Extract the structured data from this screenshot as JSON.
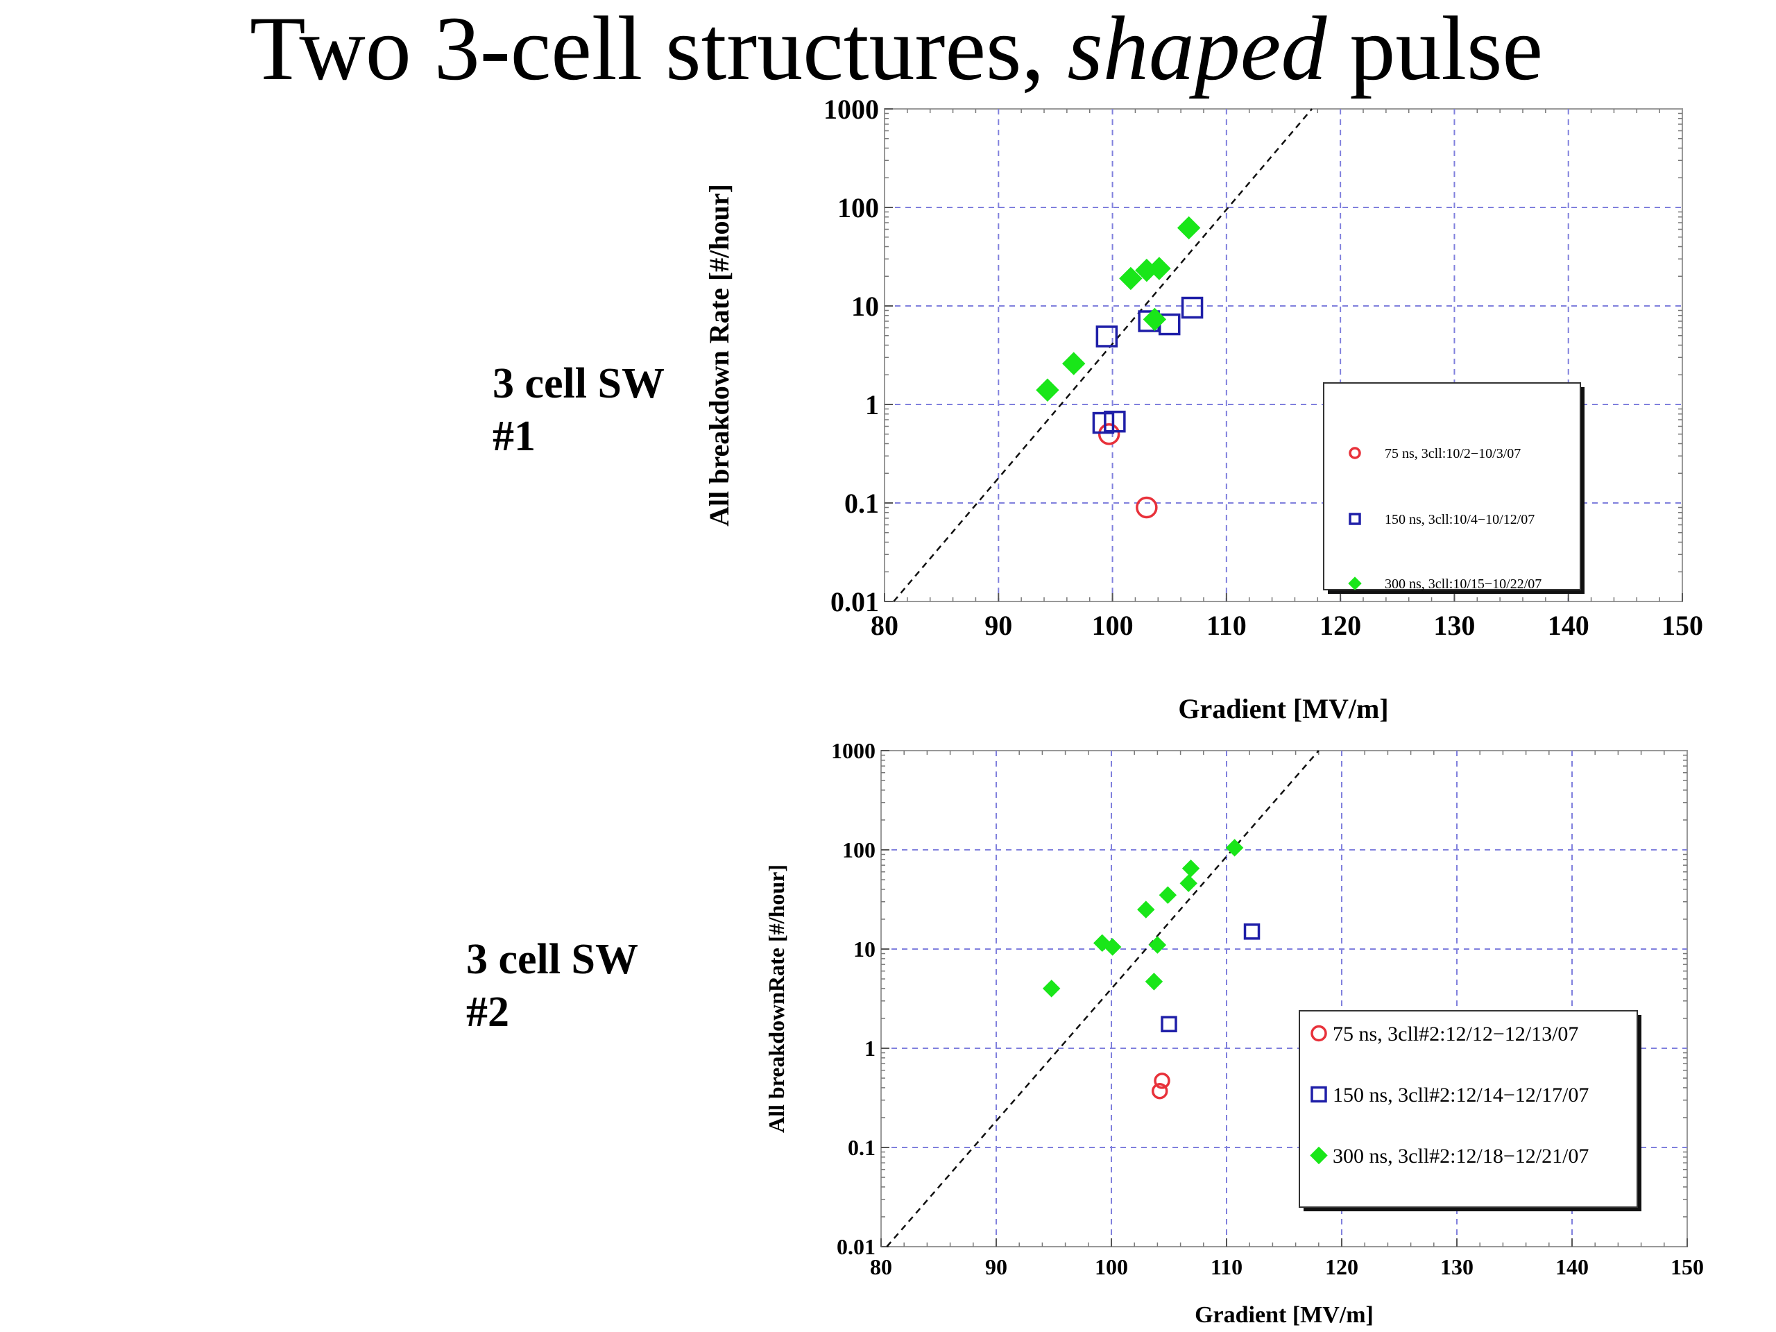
{
  "title": {
    "prefix": "Two 3-cell structures, ",
    "emphasis": "shaped",
    "suffix": " pulse"
  },
  "structure_labels": [
    {
      "line1": "3 cell SW",
      "line2": "#1"
    },
    {
      "line1": "3 cell SW",
      "line2": "#2"
    }
  ],
  "colors": {
    "red": "#e8313a",
    "blue": "#1f1fa8",
    "green": "#19e619",
    "grid": "#8080dd"
  },
  "chart_data": [
    {
      "type": "scatter",
      "xlabel": "Gradient [MV/m]",
      "ylabel": "All breakdown Rate [#/hour]",
      "xlim": [
        80,
        150
      ],
      "ylim": [
        0.01,
        1000
      ],
      "yscale": "log",
      "xticks": [
        "80",
        "90",
        "100",
        "110",
        "120",
        "130",
        "140",
        "150"
      ],
      "yticks": [
        "0.01",
        "0.1",
        "1",
        "10",
        "100",
        "1000"
      ],
      "grid": true,
      "legend_position": "bottom-right",
      "reference_line": {
        "style": "dashed",
        "points": [
          [
            80.8,
            0.01
          ],
          [
            117.5,
            1000
          ]
        ]
      },
      "series": [
        {
          "name": "75 ns, 3cll:10/2−10/3/07",
          "marker": "circle",
          "color": "#e8313a",
          "points": [
            [
              99.7,
              0.5
            ],
            [
              103.0,
              0.09
            ]
          ]
        },
        {
          "name": "150 ns, 3cll:10/4−10/12/07",
          "marker": "square",
          "color": "#1f1fa8",
          "points": [
            [
              99.2,
              0.65
            ],
            [
              100.2,
              0.67
            ],
            [
              99.5,
              4.9
            ],
            [
              103.2,
              7.0
            ],
            [
              105.0,
              6.5
            ],
            [
              107.0,
              9.6
            ]
          ]
        },
        {
          "name": "300 ns, 3cll:10/15−10/22/07",
          "marker": "diamond",
          "color": "#19e619",
          "points": [
            [
              94.3,
              1.4
            ],
            [
              96.6,
              2.6
            ],
            [
              101.6,
              19
            ],
            [
              103.0,
              23
            ],
            [
              104.1,
              24
            ],
            [
              106.7,
              62
            ],
            [
              103.7,
              7.3
            ]
          ]
        }
      ]
    },
    {
      "type": "scatter",
      "xlabel": "Gradient [MV/m]",
      "ylabel": "All breakdownRate [#/hour]",
      "xlim": [
        80,
        150
      ],
      "ylim": [
        0.01,
        1000
      ],
      "yscale": "log",
      "xticks": [
        "80",
        "90",
        "100",
        "110",
        "120",
        "130",
        "140",
        "150"
      ],
      "yticks": [
        "0.01",
        "0.1",
        "1",
        "10",
        "100",
        "1000"
      ],
      "grid": true,
      "legend_position": "bottom-right",
      "reference_line": {
        "style": "dashed",
        "points": [
          [
            80.5,
            0.01
          ],
          [
            118.0,
            1000
          ]
        ]
      },
      "series": [
        {
          "name": "75 ns, 3cll#2:12/12−12/13/07",
          "marker": "circle",
          "color": "#e8313a",
          "points": [
            [
              104.4,
              0.47
            ],
            [
              104.2,
              0.37
            ]
          ]
        },
        {
          "name": "150 ns, 3cll#2:12/14−12/17/07",
          "marker": "square",
          "color": "#1f1fa8",
          "points": [
            [
              105.0,
              1.75
            ],
            [
              112.2,
              15
            ]
          ]
        },
        {
          "name": "300 ns, 3cll#2:12/18−12/21/07",
          "marker": "diamond",
          "color": "#19e619",
          "points": [
            [
              94.8,
              4.0
            ],
            [
              99.2,
              11.5
            ],
            [
              100.1,
              10.5
            ],
            [
              103.7,
              4.7
            ],
            [
              104.0,
              11
            ],
            [
              103.0,
              25
            ],
            [
              104.9,
              35
            ],
            [
              106.7,
              46
            ],
            [
              106.9,
              65
            ],
            [
              110.7,
              105
            ]
          ]
        }
      ]
    }
  ]
}
